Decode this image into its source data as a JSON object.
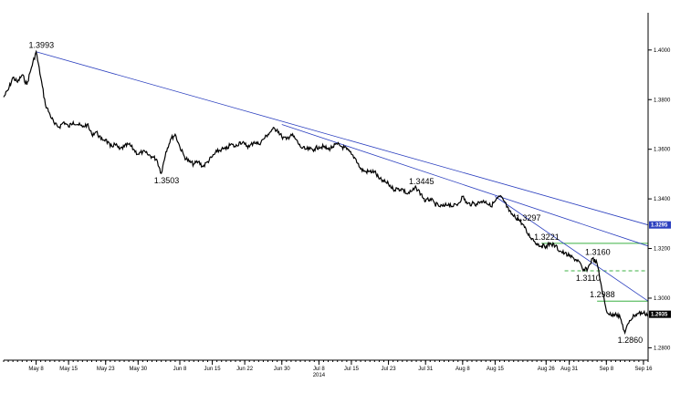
{
  "chart_data": {
    "type": "line",
    "title": "",
    "xlabel": "",
    "ylabel": "",
    "ylim": [
      1.275,
      1.415
    ],
    "grid": false,
    "y_ticks": [
      {
        "value": 1.28,
        "label": "1.2800"
      },
      {
        "value": 1.3,
        "label": "1.3000"
      },
      {
        "value": 1.32,
        "label": "1.3200"
      },
      {
        "value": 1.34,
        "label": "1.3400"
      },
      {
        "value": 1.36,
        "label": "1.3600"
      },
      {
        "value": 1.38,
        "label": "1.3800"
      },
      {
        "value": 1.4,
        "label": "1.4000"
      }
    ],
    "x_ticks": [
      {
        "day": 0,
        "label": "May 8"
      },
      {
        "day": 7,
        "label": "May 15"
      },
      {
        "day": 15,
        "label": "May 23"
      },
      {
        "day": 22,
        "label": "May 30"
      },
      {
        "day": 31,
        "label": "Jun 8"
      },
      {
        "day": 38,
        "label": "Jun 15"
      },
      {
        "day": 45,
        "label": "Jun 22"
      },
      {
        "day": 53,
        "label": "Jun 30"
      },
      {
        "day": 61,
        "label": "Jul 8"
      },
      {
        "day": 68,
        "label": "Jul 15"
      },
      {
        "day": 76,
        "label": "Jul 23"
      },
      {
        "day": 84,
        "label": "Jul 31"
      },
      {
        "day": 92,
        "label": "Aug 8"
      },
      {
        "day": 99,
        "label": "Aug 15"
      },
      {
        "day": 110,
        "label": "Aug 26"
      },
      {
        "day": 115,
        "label": "Aug 31"
      },
      {
        "day": 123,
        "label": "Sep 8"
      },
      {
        "day": 131,
        "label": "Sep 16"
      }
    ],
    "year_label": {
      "day": 61,
      "label": "2014"
    },
    "x_range": [
      -7,
      132
    ],
    "series": [
      {
        "color": "#000000",
        "points": [
          [
            -7,
            1.381
          ],
          [
            -6,
            1.384
          ],
          [
            -5,
            1.389
          ],
          [
            -4,
            1.387
          ],
          [
            -3,
            1.39
          ],
          [
            -2,
            1.386
          ],
          [
            -1,
            1.393
          ],
          [
            0,
            1.3993
          ],
          [
            1,
            1.389
          ],
          [
            2,
            1.378
          ],
          [
            3,
            1.374
          ],
          [
            4,
            1.37
          ],
          [
            5,
            1.369
          ],
          [
            6,
            1.371
          ],
          [
            7,
            1.369
          ],
          [
            8,
            1.371
          ],
          [
            9,
            1.37
          ],
          [
            10,
            1.369
          ],
          [
            11,
            1.37
          ],
          [
            12,
            1.366
          ],
          [
            13,
            1.367
          ],
          [
            14,
            1.364
          ],
          [
            15,
            1.364
          ],
          [
            16,
            1.361
          ],
          [
            17,
            1.362
          ],
          [
            18,
            1.36
          ],
          [
            19,
            1.361
          ],
          [
            20,
            1.362
          ],
          [
            21,
            1.36
          ],
          [
            22,
            1.358
          ],
          [
            23,
            1.359
          ],
          [
            24,
            1.358
          ],
          [
            25,
            1.357
          ],
          [
            26,
            1.356
          ],
          [
            27,
            1.3503
          ],
          [
            28,
            1.359
          ],
          [
            29,
            1.364
          ],
          [
            30,
            1.366
          ],
          [
            31,
            1.361
          ],
          [
            32,
            1.357
          ],
          [
            33,
            1.355
          ],
          [
            34,
            1.354
          ],
          [
            35,
            1.355
          ],
          [
            36,
            1.353
          ],
          [
            37,
            1.355
          ],
          [
            38,
            1.357
          ],
          [
            39,
            1.359
          ],
          [
            40,
            1.36
          ],
          [
            41,
            1.36
          ],
          [
            42,
            1.362
          ],
          [
            43,
            1.361
          ],
          [
            44,
            1.363
          ],
          [
            45,
            1.362
          ],
          [
            46,
            1.361
          ],
          [
            47,
            1.363
          ],
          [
            48,
            1.362
          ],
          [
            49,
            1.364
          ],
          [
            50,
            1.366
          ],
          [
            51,
            1.368
          ],
          [
            52,
            1.368
          ],
          [
            53,
            1.365
          ],
          [
            54,
            1.364
          ],
          [
            55,
            1.366
          ],
          [
            56,
            1.364
          ],
          [
            57,
            1.361
          ],
          [
            58,
            1.36
          ],
          [
            59,
            1.36
          ],
          [
            60,
            1.36
          ],
          [
            61,
            1.361
          ],
          [
            62,
            1.361
          ],
          [
            63,
            1.36
          ],
          [
            64,
            1.361
          ],
          [
            65,
            1.362
          ],
          [
            66,
            1.361
          ],
          [
            67,
            1.36
          ],
          [
            68,
            1.358
          ],
          [
            69,
            1.356
          ],
          [
            70,
            1.352
          ],
          [
            71,
            1.351
          ],
          [
            72,
            1.351
          ],
          [
            73,
            1.351
          ],
          [
            74,
            1.348
          ],
          [
            75,
            1.347
          ],
          [
            76,
            1.346
          ],
          [
            77,
            1.344
          ],
          [
            78,
            1.344
          ],
          [
            79,
            1.344
          ],
          [
            80,
            1.342
          ],
          [
            81,
            1.343
          ],
          [
            82,
            1.3445
          ],
          [
            83,
            1.342
          ],
          [
            84,
            1.339
          ],
          [
            85,
            1.34
          ],
          [
            86,
            1.338
          ],
          [
            87,
            1.337
          ],
          [
            88,
            1.337
          ],
          [
            89,
            1.338
          ],
          [
            90,
            1.337
          ],
          [
            91,
            1.338
          ],
          [
            92,
            1.341
          ],
          [
            93,
            1.338
          ],
          [
            94,
            1.338
          ],
          [
            95,
            1.338
          ],
          [
            96,
            1.339
          ],
          [
            97,
            1.339
          ],
          [
            98,
            1.337
          ],
          [
            99,
            1.339
          ],
          [
            100,
            1.341
          ],
          [
            101,
            1.339
          ],
          [
            102,
            1.335
          ],
          [
            103,
            1.333
          ],
          [
            104,
            1.332
          ],
          [
            105,
            1.3297
          ],
          [
            106,
            1.326
          ],
          [
            107,
            1.324
          ],
          [
            108,
            1.322
          ],
          [
            109,
            1.321
          ],
          [
            110,
            1.321
          ],
          [
            111,
            1.322
          ],
          [
            112,
            1.321
          ],
          [
            113,
            1.319
          ],
          [
            114,
            1.318
          ],
          [
            115,
            1.317
          ],
          [
            116,
            1.316
          ],
          [
            117,
            1.315
          ],
          [
            118,
            1.311
          ],
          [
            119,
            1.312
          ],
          [
            120,
            1.316
          ],
          [
            121,
            1.314
          ],
          [
            122,
            1.304
          ],
          [
            123,
            1.295
          ],
          [
            124,
            1.293
          ],
          [
            125,
            1.294
          ],
          [
            126,
            1.292
          ],
          [
            127,
            1.286
          ],
          [
            128,
            1.291
          ],
          [
            129,
            1.293
          ],
          [
            130,
            1.294
          ],
          [
            131,
            1.294
          ],
          [
            132,
            1.2935
          ]
        ]
      }
    ],
    "trendlines": [
      {
        "color": "#2b3fbf",
        "from": [
          0,
          1.3993
        ],
        "to": [
          132,
          1.3295
        ]
      },
      {
        "color": "#2b3fbf",
        "from": [
          53,
          1.37
        ],
        "to": [
          132,
          1.321
        ]
      },
      {
        "color": "#2b3fbf",
        "from": [
          99,
          1.341
        ],
        "to": [
          132,
          1.2988
        ]
      }
    ],
    "hlines": [
      {
        "value": 1.3221,
        "color": "#3cb043",
        "dashed": false,
        "from_day": 109
      },
      {
        "value": 1.311,
        "color": "#3cb043",
        "dashed": true,
        "from_day": 114
      },
      {
        "value": 1.2988,
        "color": "#3cb043",
        "dashed": false,
        "from_day": 121
      }
    ],
    "annotations": [
      {
        "day": 0,
        "value": 1.3993,
        "label": "1.3993",
        "pos": "above"
      },
      {
        "day": 27,
        "value": 1.3503,
        "label": "1.3503",
        "pos": "below"
      },
      {
        "day": 82,
        "value": 1.3445,
        "label": "1.3445",
        "pos": "above"
      },
      {
        "day": 105,
        "value": 1.3297,
        "label": "1.3297",
        "pos": "above"
      },
      {
        "day": 109,
        "value": 1.3221,
        "label": "1.3221",
        "pos": "above"
      },
      {
        "day": 118,
        "value": 1.311,
        "label": "1.3110",
        "pos": "below"
      },
      {
        "day": 120,
        "value": 1.316,
        "label": "1.3160",
        "pos": "above"
      },
      {
        "day": 121,
        "value": 1.2988,
        "label": "1.2988",
        "pos": "above"
      },
      {
        "day": 127,
        "value": 1.286,
        "label": "1.2860",
        "pos": "below"
      }
    ],
    "price_tags": [
      {
        "value": 1.3295,
        "label": "1.3295",
        "bg": "#2b3fbf",
        "dark_text": false
      },
      {
        "value": 1.2935,
        "label": "1.2935",
        "bg": "#000000",
        "dark_text": false
      }
    ]
  }
}
